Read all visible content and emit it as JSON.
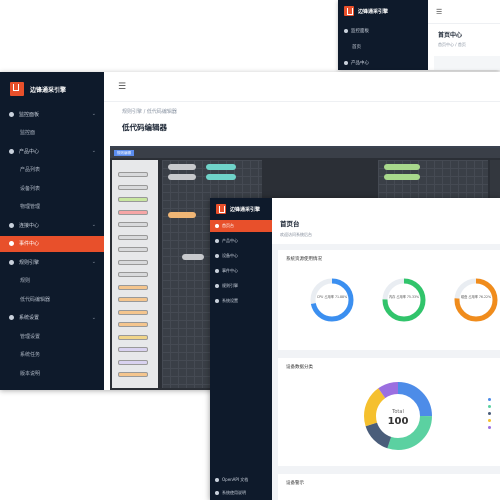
{
  "brand": {
    "name": "边锋通采引擎",
    "accent": "#e8502b",
    "sidebar_bg": "#0e1a2b"
  },
  "back_window": {
    "title": "首页中心",
    "crumb": "首页中心 / 首页",
    "items": [
      "监控面板",
      "首页",
      "产品中心"
    ]
  },
  "middle_window": {
    "breadcrumb": "规则引擎 / 低代码编辑器",
    "page_title": "低代码编辑器",
    "sidebar": [
      {
        "label": "监控面板",
        "sub": false,
        "active": false
      },
      {
        "label": "监控面",
        "sub": true,
        "active": false
      },
      {
        "label": "产品中心",
        "sub": false,
        "active": false
      },
      {
        "label": "产品列表",
        "sub": true,
        "active": false
      },
      {
        "label": "设备列表",
        "sub": true,
        "active": false
      },
      {
        "label": "物理管理",
        "sub": true,
        "active": false
      },
      {
        "label": "连接中心",
        "sub": false,
        "active": false
      },
      {
        "label": "事件中心",
        "sub": false,
        "active": true
      },
      {
        "label": "规则引擎",
        "sub": false,
        "active": false
      },
      {
        "label": "规则",
        "sub": true,
        "active": false
      },
      {
        "label": "低代码编辑器",
        "sub": true,
        "active": false
      },
      {
        "label": "系统设置",
        "sub": false,
        "active": false
      },
      {
        "label": "管理设置",
        "sub": true,
        "active": false
      },
      {
        "label": "系统任务",
        "sub": true,
        "active": false
      },
      {
        "label": "版本说明",
        "sub": true,
        "active": false
      }
    ],
    "editor_tab": "规则编辑"
  },
  "front_window": {
    "title": "首页台",
    "subtitle": "欢迎访问系统后台",
    "sidebar": [
      {
        "label": "首页台",
        "active": true
      },
      {
        "label": "产品中心",
        "active": false
      },
      {
        "label": "设备中心",
        "active": false
      },
      {
        "label": "事件中心",
        "active": false
      },
      {
        "label": "规则引擎",
        "active": false
      },
      {
        "label": "系统设置",
        "active": false
      }
    ],
    "sidebar_footer": [
      "OpenAPI 文档",
      "系统使用说明"
    ],
    "cards": {
      "resources_title": "系统资源使用情况",
      "devices_title": "设备数据分类",
      "alarms_title": "设备警示"
    },
    "rings": [
      {
        "label": "CPU 占用率",
        "value": 71.88,
        "text": "71.88%",
        "color": "#3b8ff0"
      },
      {
        "label": "内存 占用率",
        "value": 75.33,
        "text": "75.33%",
        "color": "#31c46b"
      },
      {
        "label": "磁盘 占用率",
        "value": 76.22,
        "text": "76.22%",
        "color": "#f08c1c"
      }
    ],
    "donut": {
      "total_label": "Total",
      "total_value": "100",
      "segments": [
        {
          "value": 25,
          "color": "#4d8ce8"
        },
        {
          "value": 30,
          "color": "#5bd1a1"
        },
        {
          "value": 15,
          "color": "#4a5d7a"
        },
        {
          "value": 20,
          "color": "#f5c02e"
        },
        {
          "value": 10,
          "color": "#9b6fe0"
        }
      ]
    }
  }
}
